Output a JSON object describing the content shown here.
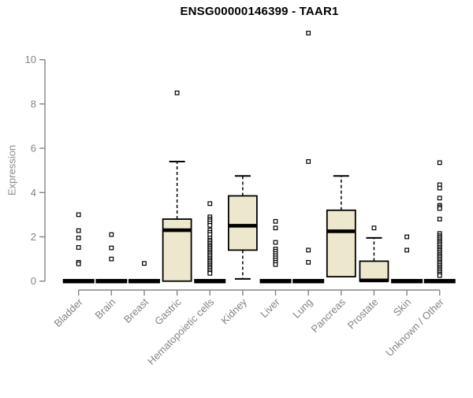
{
  "page": {
    "background": "#ffffff"
  },
  "header": {
    "title": "ENSG00000146399 - TAAR1"
  },
  "chart_data": {
    "type": "boxplot",
    "title": "ENSG00000146399 - TAAR1",
    "ylabel": "Expression",
    "xlabel": "",
    "ylim": [
      0,
      10
    ],
    "yticks": [
      0,
      2,
      4,
      6,
      8,
      10
    ],
    "grid": false,
    "legend": "none",
    "box_fill": "#EDE8CD",
    "box_border": "#000000",
    "axis_color": "#848484",
    "categories": [
      "Bladder",
      "Brain",
      "Breast",
      "Gastric",
      "Hematopoietic cells",
      "Kidney",
      "Liver",
      "Lung",
      "Pancreas",
      "Prostate",
      "Skin",
      "Unknown / Other"
    ],
    "boxes": [
      {
        "name": "Bladder",
        "q1": 0,
        "median": 0,
        "q3": 0,
        "whisker_low": 0,
        "whisker_high": 0,
        "outliers": [
          3.0,
          2.28,
          1.95,
          1.52,
          0.85,
          0.78
        ]
      },
      {
        "name": "Brain",
        "q1": 0,
        "median": 0,
        "q3": 0,
        "whisker_low": 0,
        "whisker_high": 0,
        "outliers": [
          2.1,
          1.5,
          1.0
        ]
      },
      {
        "name": "Breast",
        "q1": 0,
        "median": 0,
        "q3": 0,
        "whisker_low": 0,
        "whisker_high": 0,
        "outliers": [
          0.8
        ]
      },
      {
        "name": "Gastric",
        "q1": 0,
        "median": 2.3,
        "q3": 2.8,
        "whisker_low": 0,
        "whisker_high": 5.4,
        "outliers": [
          8.5
        ]
      },
      {
        "name": "Hematopoietic cells",
        "q1": 0,
        "median": 0,
        "q3": 0,
        "whisker_low": 0,
        "whisker_high": 0,
        "outliers": [
          3.5,
          2.9,
          2.8,
          2.72,
          2.62,
          2.52,
          2.3,
          2.2,
          2.1,
          1.95,
          1.85,
          1.78,
          1.7,
          1.62,
          1.55,
          1.48,
          1.4,
          1.32,
          1.25,
          1.18,
          1.1,
          1.02,
          0.95,
          0.88,
          0.8,
          0.72,
          0.65,
          0.58,
          0.5,
          0.42,
          0.35
        ]
      },
      {
        "name": "Kidney",
        "q1": 1.4,
        "median": 2.5,
        "q3": 3.85,
        "whisker_low": 0.1,
        "whisker_high": 4.75,
        "outliers": []
      },
      {
        "name": "Liver",
        "q1": 0,
        "median": 0,
        "q3": 0,
        "whisker_low": 0,
        "whisker_high": 0,
        "outliers": [
          2.7,
          2.4,
          1.75,
          1.45,
          1.35,
          1.25,
          1.15,
          1.05,
          0.95,
          0.85,
          0.75
        ]
      },
      {
        "name": "Lung",
        "q1": 0,
        "median": 0,
        "q3": 0,
        "whisker_low": 0,
        "whisker_high": 0,
        "outliers": [
          11.2,
          5.4,
          1.4,
          0.85
        ]
      },
      {
        "name": "Pancreas",
        "q1": 0.2,
        "median": 2.25,
        "q3": 3.2,
        "whisker_low": 0.2,
        "whisker_high": 4.75,
        "outliers": []
      },
      {
        "name": "Prostate",
        "q1": 0,
        "median": 0.03,
        "q3": 0.9,
        "whisker_low": 0,
        "whisker_high": 1.95,
        "outliers": [
          2.4
        ]
      },
      {
        "name": "Skin",
        "q1": 0,
        "median": 0,
        "q3": 0,
        "whisker_low": 0,
        "whisker_high": 0,
        "outliers": [
          2.0,
          1.4
        ]
      },
      {
        "name": "Unknown / Other",
        "q1": 0,
        "median": 0,
        "q3": 0,
        "whisker_low": 0,
        "whisker_high": 0,
        "outliers": [
          5.35,
          4.35,
          4.2,
          3.75,
          3.42,
          3.35,
          3.28,
          2.8,
          2.15,
          2.05,
          1.98,
          1.9,
          1.82,
          1.75,
          1.68,
          1.6,
          1.52,
          1.45,
          1.38,
          1.3,
          1.22,
          1.15,
          1.08,
          1.0,
          0.92,
          0.85,
          0.78,
          0.7,
          0.62,
          0.55,
          0.48,
          0.4,
          0.32,
          0.25
        ]
      }
    ]
  }
}
